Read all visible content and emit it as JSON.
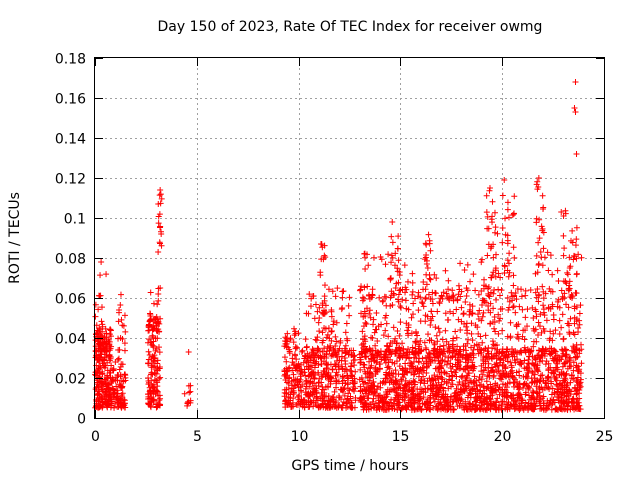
{
  "chart_data": {
    "type": "scatter",
    "title": "Day 150 of 2023, Rate Of TEC Index for receiver owmg",
    "xlabel": "GPS time / hours",
    "ylabel": "ROTI / TECUs",
    "xlim": [
      0,
      25
    ],
    "ylim": [
      0,
      0.18
    ],
    "xticks": [
      0,
      5,
      10,
      15,
      20,
      25
    ],
    "xtick_labels": [
      "0",
      "5",
      "10",
      "15",
      "20",
      "25"
    ],
    "yticks": [
      0,
      0.02,
      0.04,
      0.06,
      0.08,
      0.1,
      0.12,
      0.14,
      0.16,
      0.18
    ],
    "ytick_labels": [
      "0",
      "0.02",
      "0.04",
      "0.06",
      "0.08",
      "0.1",
      "0.12",
      "0.14",
      "0.16",
      "0.18"
    ],
    "grid": true,
    "marker": "+",
    "color": "#ff0000",
    "clusters": [
      {
        "x": [
          0.0,
          0.8
        ],
        "y": [
          0.005,
          0.045
        ],
        "n": 220
      },
      {
        "x": [
          0.0,
          0.6
        ],
        "y": [
          0.03,
          0.072
        ],
        "n": 40
      },
      {
        "x": [
          0.8,
          1.5
        ],
        "y": [
          0.005,
          0.025
        ],
        "n": 80
      },
      {
        "x": [
          1.1,
          1.5
        ],
        "y": [
          0.02,
          0.067
        ],
        "n": 25
      },
      {
        "x": [
          2.6,
          3.2
        ],
        "y": [
          0.005,
          0.05
        ],
        "n": 140
      },
      {
        "x": [
          2.7,
          3.2
        ],
        "y": [
          0.04,
          0.068
        ],
        "n": 20
      },
      {
        "x": [
          3.1,
          3.3
        ],
        "y": [
          0.085,
          0.113
        ],
        "n": 14
      },
      {
        "x": [
          4.4,
          4.7
        ],
        "y": [
          0.006,
          0.018
        ],
        "n": 12
      },
      {
        "x": [
          9.3,
          10.0
        ],
        "y": [
          0.005,
          0.045
        ],
        "n": 110
      },
      {
        "x": [
          10.0,
          12.8
        ],
        "y": [
          0.005,
          0.035
        ],
        "n": 360
      },
      {
        "x": [
          10.3,
          12.5
        ],
        "y": [
          0.03,
          0.065
        ],
        "n": 90
      },
      {
        "x": [
          11.0,
          11.4
        ],
        "y": [
          0.05,
          0.087
        ],
        "n": 22
      },
      {
        "x": [
          13.0,
          23.9
        ],
        "y": [
          0.004,
          0.035
        ],
        "n": 1500
      },
      {
        "x": [
          13.0,
          23.9
        ],
        "y": [
          0.03,
          0.065
        ],
        "n": 520
      },
      {
        "x": [
          13.0,
          23.9
        ],
        "y": [
          0.06,
          0.085
        ],
        "n": 110
      },
      {
        "x": [
          14.5,
          15.0
        ],
        "y": [
          0.06,
          0.098
        ],
        "n": 20
      },
      {
        "x": [
          16.2,
          16.5
        ],
        "y": [
          0.06,
          0.095
        ],
        "n": 14
      },
      {
        "x": [
          19.2,
          19.8
        ],
        "y": [
          0.06,
          0.115
        ],
        "n": 30
      },
      {
        "x": [
          20.0,
          20.6
        ],
        "y": [
          0.07,
          0.12
        ],
        "n": 24
      },
      {
        "x": [
          21.6,
          22.1
        ],
        "y": [
          0.07,
          0.12
        ],
        "n": 24
      },
      {
        "x": [
          23.0,
          23.7
        ],
        "y": [
          0.06,
          0.105
        ],
        "n": 24
      }
    ],
    "outliers": [
      {
        "x": 0.3,
        "y": 0.078
      },
      {
        "x": 1.0,
        "y": 0.028
      },
      {
        "x": 4.6,
        "y": 0.033
      },
      {
        "x": 23.6,
        "y": 0.168
      },
      {
        "x": 23.55,
        "y": 0.155
      },
      {
        "x": 23.6,
        "y": 0.153
      },
      {
        "x": 23.65,
        "y": 0.132
      },
      {
        "x": 20.1,
        "y": 0.119
      },
      {
        "x": 21.8,
        "y": 0.12
      },
      {
        "x": 19.4,
        "y": 0.115
      },
      {
        "x": 3.2,
        "y": 0.114
      },
      {
        "x": 3.25,
        "y": 0.092
      },
      {
        "x": 3.1,
        "y": 0.083
      },
      {
        "x": 3.2,
        "y": 0.065
      },
      {
        "x": 11.1,
        "y": 0.087
      },
      {
        "x": 14.6,
        "y": 0.098
      },
      {
        "x": 22.9,
        "y": 0.103
      }
    ]
  }
}
